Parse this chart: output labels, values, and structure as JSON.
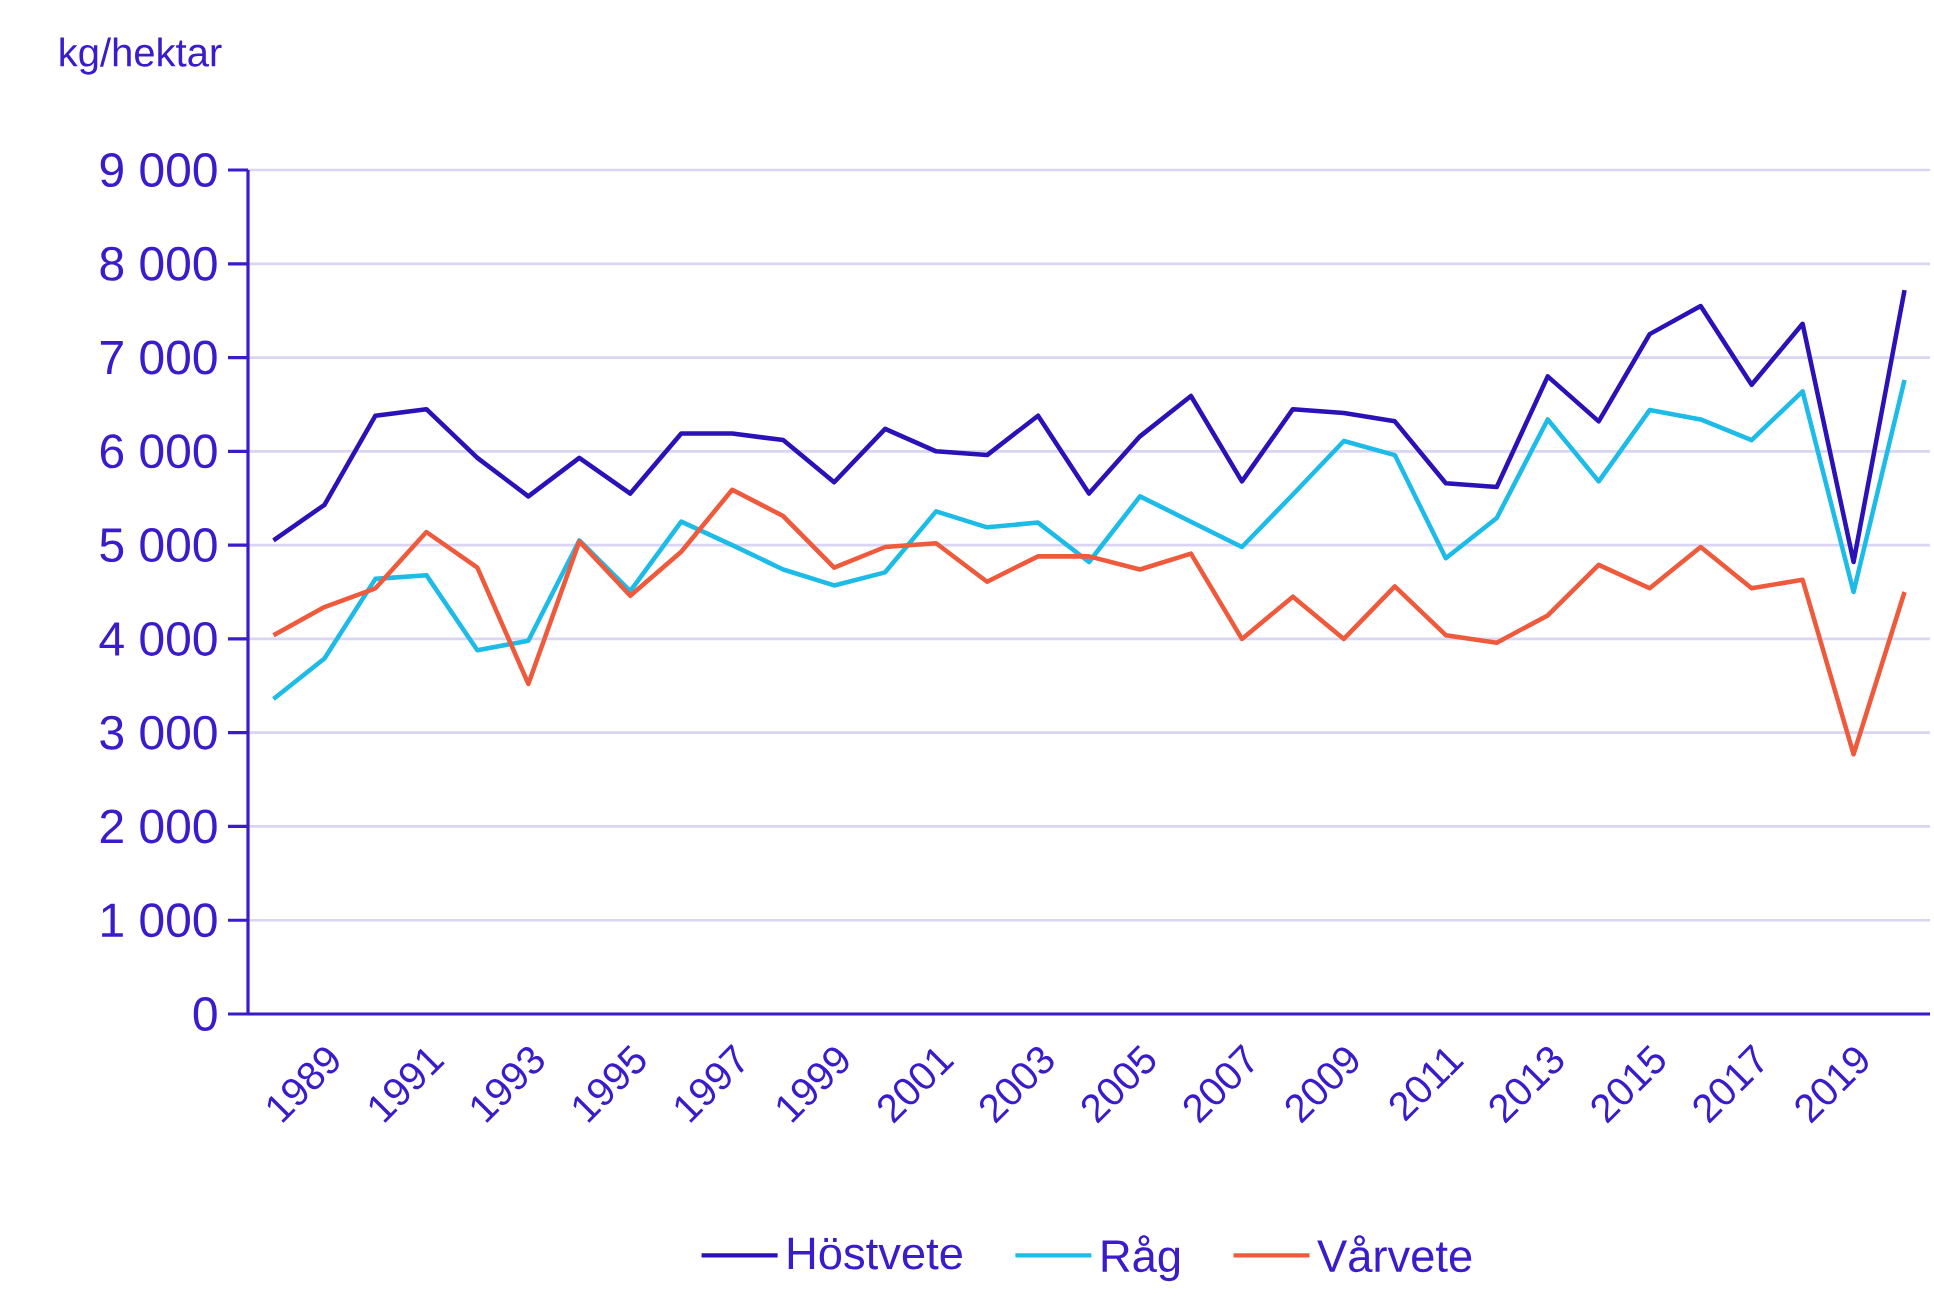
{
  "chart_data": {
    "type": "line",
    "ylabel": "kg/hektar",
    "categories": [
      null,
      "1989",
      null,
      "1991",
      null,
      "1993",
      null,
      "1995",
      null,
      "1997",
      null,
      "1999",
      null,
      "2001",
      null,
      "2003",
      null,
      "2005",
      null,
      "2007",
      null,
      "2009",
      null,
      "2011",
      null,
      "2013",
      null,
      "2015",
      null,
      "2017",
      null,
      "2019",
      null
    ],
    "series": [
      {
        "name": "Höstvete",
        "color": "#2a12b8",
        "values": [
          5050,
          5430,
          6380,
          6450,
          5930,
          5520,
          5930,
          5550,
          6190,
          6190,
          6120,
          5670,
          6240,
          6000,
          5960,
          6380,
          5550,
          6160,
          6590,
          5680,
          6450,
          6410,
          6320,
          5660,
          5620,
          6800,
          6320,
          7250,
          7550,
          6710,
          7360,
          4820,
          7720
        ]
      },
      {
        "name": "Råg",
        "color": "#1dbbe8",
        "values": [
          3360,
          3790,
          4640,
          4680,
          3880,
          3980,
          5050,
          4510,
          5250,
          5000,
          4740,
          4570,
          4710,
          5360,
          5190,
          5240,
          4820,
          5520,
          5250,
          4980,
          5540,
          6110,
          5960,
          4860,
          5290,
          6340,
          5680,
          6440,
          6340,
          6120,
          6640,
          4500,
          6760
        ]
      },
      {
        "name": "Vårvete",
        "color": "#ef5a3c",
        "values": [
          4040,
          4340,
          4540,
          5140,
          4760,
          3520,
          5040,
          4460,
          4930,
          5590,
          5310,
          4760,
          4980,
          5020,
          4610,
          4880,
          4880,
          4740,
          4910,
          4000,
          4450,
          4000,
          4560,
          4040,
          3960,
          4250,
          4790,
          4540,
          4980,
          4540,
          4630,
          2770,
          4500
        ]
      }
    ],
    "ylim": [
      0,
      9000
    ],
    "yticks": [
      0,
      {
        "value": 1000,
        "label": "1 000"
      },
      {
        "value": 2000,
        "label": "2 000"
      },
      {
        "value": 3000,
        "label": "3 000"
      },
      {
        "value": 4000,
        "label": "4 000"
      },
      {
        "value": 5000,
        "label": "5 000"
      },
      {
        "value": 6000,
        "label": "6 000"
      },
      {
        "value": 7000,
        "label": "7 000"
      },
      {
        "value": 8000,
        "label": "8 000"
      },
      {
        "value": 9000,
        "label": "9 000"
      }
    ],
    "grid": "y",
    "legend": "bottom"
  }
}
